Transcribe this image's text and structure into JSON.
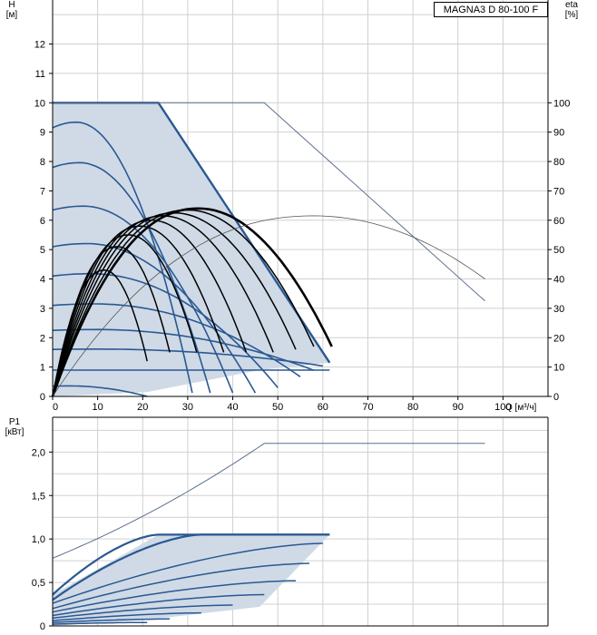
{
  "model": "MAGNA3 D 80-100 F",
  "colors": {
    "curve": "#2a5892",
    "area": "#cfdae6",
    "eta": "#000000",
    "max": "#5b6f8f",
    "grid": "#d0d0d0"
  },
  "chart_data": [
    {
      "type": "line",
      "name": "head",
      "ylabel": [
        "H",
        "[м]"
      ],
      "y2label": [
        "eta",
        "[%]"
      ],
      "xlabel": "Q [м³/ч]",
      "xticks": [
        "0",
        "10",
        "20",
        "30",
        "40",
        "50",
        "60",
        "70",
        "80",
        "90",
        "100"
      ],
      "yticks": [
        "0",
        "1",
        "2",
        "3",
        "4",
        "5",
        "6",
        "7",
        "8",
        "9",
        "10",
        "11",
        "12"
      ],
      "y2ticks": [
        "0",
        "10",
        "20",
        "30",
        "40",
        "50",
        "60",
        "70",
        "80",
        "90",
        "100"
      ],
      "xlim": [
        0,
        110
      ],
      "ylim": [
        0,
        13.5
      ],
      "y2lim": [
        0,
        135
      ],
      "grid": true,
      "operating_area": [
        [
          0,
          10
        ],
        [
          23.5,
          10
        ],
        [
          61.5,
          1.15
        ],
        [
          46,
          0.9
        ],
        [
          21,
          0.15
        ],
        [
          0,
          0
        ]
      ],
      "curves": [
        {
          "h0": 10.0,
          "qmax": 23.5,
          "cap": true
        },
        {
          "h0": 9.15,
          "qmax": 31
        },
        {
          "h0": 7.8,
          "qmax": 35
        },
        {
          "h0": 6.35,
          "qmax": 40
        },
        {
          "h0": 5.1,
          "qmax": 45
        },
        {
          "h0": 4.1,
          "qmax": 50
        },
        {
          "h0": 3.1,
          "qmax": 55
        },
        {
          "h0": 2.25,
          "qmax": 58
        },
        {
          "h0": 1.6,
          "qmax": 60
        },
        {
          "h0": 0.9,
          "qmax": 61.5
        },
        {
          "h0": 0.35,
          "qmax": 21
        }
      ],
      "max_curve": [
        [
          0,
          10
        ],
        [
          47,
          10
        ],
        [
          96,
          3.25
        ]
      ],
      "eta_curves": [
        {
          "qpeak": 11.5,
          "peak": 43,
          "qend": 21,
          "end": 12
        },
        {
          "qpeak": 14.5,
          "peak": 51,
          "qend": 26,
          "end": 15
        },
        {
          "qpeak": 17,
          "peak": 55,
          "qend": 32,
          "end": 15
        },
        {
          "qpeak": 19.5,
          "peak": 58,
          "qend": 38,
          "end": 15
        },
        {
          "qpeak": 22,
          "peak": 60,
          "qend": 43,
          "end": 15
        },
        {
          "qpeak": 24.5,
          "peak": 61.5,
          "qend": 49,
          "end": 15
        },
        {
          "qpeak": 27,
          "peak": 62.5,
          "qend": 54,
          "end": 16
        },
        {
          "qpeak": 30,
          "peak": 63.5,
          "qend": 58,
          "end": 17
        },
        {
          "qpeak": 32.5,
          "peak": 64,
          "qend": 62,
          "end": 17,
          "bold": true
        }
      ],
      "eta_max": {
        "qpeak": 58,
        "peak": 61.5,
        "qend": 96,
        "end": 40
      }
    },
    {
      "type": "line",
      "name": "power",
      "ylabel": [
        "P1",
        "[кВт]"
      ],
      "yticks": [
        "0",
        "0,5",
        "1,0",
        "1,5",
        "2,0"
      ],
      "ylim": [
        0,
        2.4
      ],
      "grid": true,
      "operating_area": [
        [
          0,
          0.36
        ],
        [
          23.5,
          1.05
        ],
        [
          61.5,
          1.05
        ],
        [
          46,
          0.22
        ],
        [
          21,
          0.07
        ],
        [
          0,
          0
        ]
      ],
      "curves": [
        {
          "p0": 0.36,
          "q1": 23.5,
          "p1": 1.05,
          "cap": 61.5
        },
        {
          "p0": 0.3,
          "q1": 33,
          "p1": 1.05,
          "cap": 61.5
        },
        {
          "p0": 0.26,
          "q1": 60,
          "p1": 0.95
        },
        {
          "p0": 0.2,
          "q1": 57,
          "p1": 0.72
        },
        {
          "p0": 0.16,
          "q1": 54,
          "p1": 0.52
        },
        {
          "p0": 0.12,
          "q1": 47,
          "p1": 0.36
        },
        {
          "p0": 0.09,
          "q1": 40,
          "p1": 0.24
        },
        {
          "p0": 0.06,
          "q1": 33,
          "p1": 0.15
        },
        {
          "p0": 0.04,
          "q1": 26,
          "p1": 0.08
        },
        {
          "p0": 0.02,
          "q1": 21,
          "p1": 0.04
        }
      ],
      "max_curve": [
        [
          0,
          0.78
        ],
        [
          47,
          2.1
        ],
        [
          96,
          2.1
        ]
      ]
    }
  ]
}
